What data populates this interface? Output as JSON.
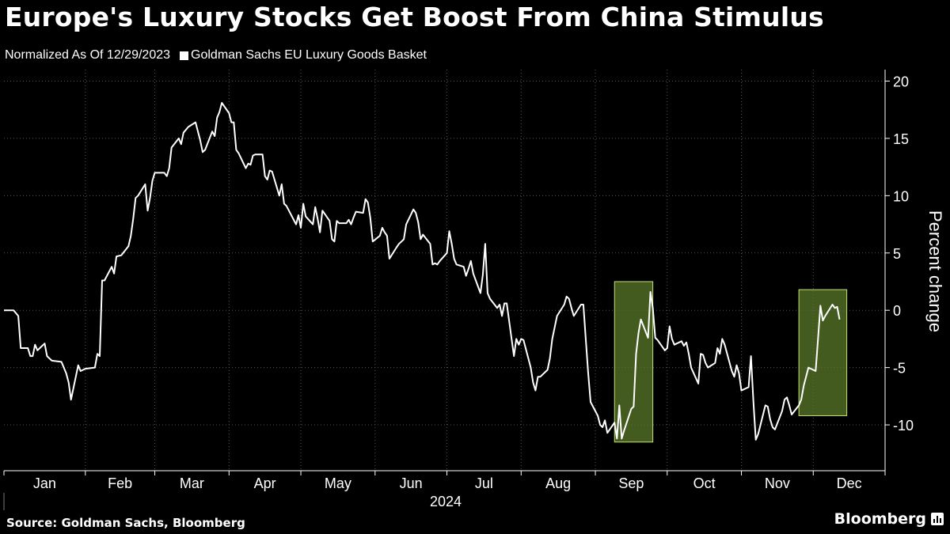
{
  "header": {
    "title": "Europe's Luxury Stocks Get Boost From China Stimulus",
    "normalized_note": "Normalized As Of 12/29/2023"
  },
  "footer": {
    "source": "Source: Goldman Sachs, Bloomberg",
    "logo_text": "Bloomberg"
  },
  "colors": {
    "background": "#000000",
    "line": "#ffffff",
    "highlight_fill": "#5a7a2a",
    "highlight_stroke": "#c5e07a",
    "grid": "#555555"
  },
  "chart_data": {
    "type": "line",
    "title": "Europe's Luxury Stocks Get Boost From China Stimulus",
    "subtitle": "Normalized As Of 12/29/2023",
    "ylabel": "Percent change",
    "xlabel": "",
    "year_label": "2024",
    "ylim": [
      -14,
      21
    ],
    "yticks": [
      -10,
      -5,
      0,
      5,
      10,
      15,
      20
    ],
    "ytick_labels": [
      "-10",
      "-5",
      "0",
      "5",
      "10",
      "15",
      "20"
    ],
    "x_months": [
      "Jan",
      "Feb",
      "Mar",
      "Apr",
      "May",
      "Jun",
      "Jul",
      "Aug",
      "Sep",
      "Oct",
      "Nov",
      "Dec"
    ],
    "grid": true,
    "legend": "top-left",
    "series": [
      {
        "name": "Goldman Sachs EU Luxury Goods Basket",
        "points": [
          [
            "2023-12-29",
            0
          ],
          [
            "2024-01-02",
            0
          ],
          [
            "2024-01-04",
            -0.5
          ],
          [
            "2024-01-05",
            -3.3
          ],
          [
            "2024-01-08",
            -3.3
          ],
          [
            "2024-01-09",
            -4
          ],
          [
            "2024-01-10",
            -4
          ],
          [
            "2024-01-11",
            -3
          ],
          [
            "2024-01-12",
            -3.5
          ],
          [
            "2024-01-15",
            -2.9
          ],
          [
            "2024-01-16",
            -4
          ],
          [
            "2024-01-18",
            -4.4
          ],
          [
            "2024-01-22",
            -4.5
          ],
          [
            "2024-01-24",
            -5.5
          ],
          [
            "2024-01-25",
            -6.3
          ],
          [
            "2024-01-26",
            -7.8
          ],
          [
            "2024-01-29",
            -4.8
          ],
          [
            "2024-01-30",
            -5.3
          ],
          [
            "2024-02-01",
            -5.1
          ],
          [
            "2024-02-05",
            -5
          ],
          [
            "2024-02-06",
            -3.8
          ],
          [
            "2024-02-07",
            -4
          ],
          [
            "2024-02-08",
            2.6
          ],
          [
            "2024-02-09",
            2.6
          ],
          [
            "2024-02-12",
            3.8
          ],
          [
            "2024-02-13",
            3.2
          ],
          [
            "2024-02-14",
            4.7
          ],
          [
            "2024-02-16",
            4.8
          ],
          [
            "2024-02-19",
            5.6
          ],
          [
            "2024-02-20",
            6.5
          ],
          [
            "2024-02-21",
            8
          ],
          [
            "2024-02-22",
            9.8
          ],
          [
            "2024-02-23",
            10
          ],
          [
            "2024-02-26",
            11
          ],
          [
            "2024-02-27",
            8.7
          ],
          [
            "2024-02-28",
            9.8
          ],
          [
            "2024-02-29",
            11.3
          ],
          [
            "2024-03-01",
            12
          ],
          [
            "2024-03-05",
            12
          ],
          [
            "2024-03-06",
            11.7
          ],
          [
            "2024-03-07",
            12.4
          ],
          [
            "2024-03-08",
            14.2
          ],
          [
            "2024-03-11",
            15
          ],
          [
            "2024-03-12",
            14.5
          ],
          [
            "2024-03-13",
            15.5
          ],
          [
            "2024-03-15",
            16
          ],
          [
            "2024-03-18",
            16.4
          ],
          [
            "2024-03-20",
            14.8
          ],
          [
            "2024-03-21",
            13.8
          ],
          [
            "2024-03-22",
            14
          ],
          [
            "2024-03-25",
            15.6
          ],
          [
            "2024-03-26",
            15.2
          ],
          [
            "2024-03-27",
            16.8
          ],
          [
            "2024-03-28",
            17.3
          ],
          [
            "2024-03-29",
            18.1
          ],
          [
            "2024-04-01",
            17.2
          ],
          [
            "2024-04-02",
            16.4
          ],
          [
            "2024-04-03",
            16.4
          ],
          [
            "2024-04-04",
            14
          ],
          [
            "2024-04-05",
            13.7
          ],
          [
            "2024-04-08",
            12.4
          ],
          [
            "2024-04-09",
            12.8
          ],
          [
            "2024-04-10",
            12.7
          ],
          [
            "2024-04-11",
            13.5
          ],
          [
            "2024-04-12",
            13.6
          ],
          [
            "2024-04-15",
            13.6
          ],
          [
            "2024-04-16",
            11.7
          ],
          [
            "2024-04-17",
            11.4
          ],
          [
            "2024-04-18",
            12.2
          ],
          [
            "2024-04-19",
            12.1
          ],
          [
            "2024-04-22",
            10
          ],
          [
            "2024-04-23",
            11
          ],
          [
            "2024-04-24",
            9.3
          ],
          [
            "2024-04-25",
            9.1
          ],
          [
            "2024-04-26",
            8.7
          ],
          [
            "2024-04-29",
            7.5
          ],
          [
            "2024-04-30",
            8.3
          ],
          [
            "2024-05-01",
            7.2
          ],
          [
            "2024-05-02",
            9.3
          ],
          [
            "2024-05-03",
            8.2
          ],
          [
            "2024-05-06",
            7.5
          ],
          [
            "2024-05-07",
            9
          ],
          [
            "2024-05-08",
            8
          ],
          [
            "2024-05-09",
            6.8
          ],
          [
            "2024-05-10",
            8.7
          ],
          [
            "2024-05-13",
            7.8
          ],
          [
            "2024-05-14",
            6.2
          ],
          [
            "2024-05-15",
            6
          ],
          [
            "2024-05-16",
            7.8
          ],
          [
            "2024-05-17",
            7.6
          ],
          [
            "2024-05-20",
            7.6
          ],
          [
            "2024-05-21",
            7.9
          ],
          [
            "2024-05-22",
            7.5
          ],
          [
            "2024-05-23",
            8.1
          ],
          [
            "2024-05-24",
            8.6
          ],
          [
            "2024-05-27",
            8.5
          ],
          [
            "2024-05-28",
            9.7
          ],
          [
            "2024-05-29",
            9.4
          ],
          [
            "2024-05-30",
            8.1
          ],
          [
            "2024-05-31",
            6
          ],
          [
            "2024-06-03",
            6.5
          ],
          [
            "2024-06-04",
            7.2
          ],
          [
            "2024-06-05",
            6.8
          ],
          [
            "2024-06-06",
            6.5
          ],
          [
            "2024-06-07",
            4.5
          ],
          [
            "2024-06-10",
            5.5
          ],
          [
            "2024-06-11",
            5.8
          ],
          [
            "2024-06-12",
            6
          ],
          [
            "2024-06-13",
            6.2
          ],
          [
            "2024-06-14",
            7.5
          ],
          [
            "2024-06-17",
            8.8
          ],
          [
            "2024-06-18",
            8.5
          ],
          [
            "2024-06-19",
            7.7
          ],
          [
            "2024-06-20",
            6.2
          ],
          [
            "2024-06-21",
            6.6
          ],
          [
            "2024-06-24",
            5.8
          ],
          [
            "2024-06-25",
            4
          ],
          [
            "2024-06-26",
            4.1
          ],
          [
            "2024-06-27",
            4
          ],
          [
            "2024-06-28",
            4.3
          ],
          [
            "2024-07-01",
            5
          ],
          [
            "2024-07-02",
            6.9
          ],
          [
            "2024-07-03",
            5.8
          ],
          [
            "2024-07-04",
            4.5
          ],
          [
            "2024-07-05",
            4
          ],
          [
            "2024-07-08",
            3.8
          ],
          [
            "2024-07-09",
            3
          ],
          [
            "2024-07-10",
            3.6
          ],
          [
            "2024-07-11",
            4.3
          ],
          [
            "2024-07-12",
            3.2
          ],
          [
            "2024-07-15",
            1.5
          ],
          [
            "2024-07-16",
            3.1
          ],
          [
            "2024-07-17",
            5.8
          ],
          [
            "2024-07-18",
            1.5
          ],
          [
            "2024-07-19",
            1
          ],
          [
            "2024-07-22",
            0.2
          ],
          [
            "2024-07-23",
            0.5
          ],
          [
            "2024-07-24",
            -0.5
          ],
          [
            "2024-07-25",
            0.6
          ],
          [
            "2024-07-26",
            0.6
          ],
          [
            "2024-07-29",
            -4
          ],
          [
            "2024-07-30",
            -2.5
          ],
          [
            "2024-07-31",
            -3
          ],
          [
            "2024-08-01",
            -2.5
          ],
          [
            "2024-08-02",
            -2.6
          ],
          [
            "2024-08-05",
            -5
          ],
          [
            "2024-08-06",
            -6.3
          ],
          [
            "2024-08-07",
            -7
          ],
          [
            "2024-08-08",
            -5.8
          ],
          [
            "2024-08-09",
            -5.8
          ],
          [
            "2024-08-12",
            -5.2
          ],
          [
            "2024-08-13",
            -4.2
          ],
          [
            "2024-08-14",
            -2.5
          ],
          [
            "2024-08-15",
            -1.5
          ],
          [
            "2024-08-16",
            -0.5
          ],
          [
            "2024-08-19",
            0.5
          ],
          [
            "2024-08-20",
            1.2
          ],
          [
            "2024-08-21",
            1
          ],
          [
            "2024-08-22",
            0.2
          ],
          [
            "2024-08-23",
            -0.5
          ],
          [
            "2024-08-26",
            0.5
          ],
          [
            "2024-08-27",
            0.5
          ],
          [
            "2024-08-28",
            -2.5
          ],
          [
            "2024-08-29",
            -5.5
          ],
          [
            "2024-08-30",
            -8
          ],
          [
            "2024-09-02",
            -9.2
          ],
          [
            "2024-09-03",
            -10
          ],
          [
            "2024-09-04",
            -10.2
          ],
          [
            "2024-09-05",
            -9.6
          ],
          [
            "2024-09-06",
            -10.7
          ],
          [
            "2024-09-09",
            -9.8
          ],
          [
            "2024-09-10",
            -11.2
          ],
          [
            "2024-09-11",
            -8.3
          ],
          [
            "2024-09-12",
            -11.2
          ],
          [
            "2024-09-13",
            -10.5
          ],
          [
            "2024-09-16",
            -8.6
          ],
          [
            "2024-09-17",
            -8.4
          ],
          [
            "2024-09-18",
            -3.8
          ],
          [
            "2024-09-19",
            -2
          ],
          [
            "2024-09-20",
            -0.8
          ],
          [
            "2024-09-23",
            -2.4
          ],
          [
            "2024-09-24",
            1.6
          ],
          [
            "2024-09-25",
            0.2
          ],
          [
            "2024-09-26",
            -2.4
          ],
          [
            "2024-09-27",
            -2.6
          ],
          [
            "2024-09-30",
            -3.5
          ],
          [
            "2024-10-01",
            -3.3
          ],
          [
            "2024-10-02",
            -1.4
          ],
          [
            "2024-10-03",
            -2.5
          ],
          [
            "2024-10-04",
            -3
          ],
          [
            "2024-10-07",
            -2.7
          ],
          [
            "2024-10-08",
            -3.1
          ],
          [
            "2024-10-09",
            -2.8
          ],
          [
            "2024-10-10",
            -3.8
          ],
          [
            "2024-10-11",
            -5
          ],
          [
            "2024-10-14",
            -6.4
          ],
          [
            "2024-10-15",
            -3.8
          ],
          [
            "2024-10-16",
            -3.9
          ],
          [
            "2024-10-17",
            -4.6
          ],
          [
            "2024-10-18",
            -5
          ],
          [
            "2024-10-21",
            -4.6
          ],
          [
            "2024-10-22",
            -3.3
          ],
          [
            "2024-10-23",
            -3.8
          ],
          [
            "2024-10-24",
            -2.5
          ],
          [
            "2024-10-25",
            -3
          ],
          [
            "2024-10-28",
            -5.3
          ],
          [
            "2024-10-29",
            -5.8
          ],
          [
            "2024-10-30",
            -4.8
          ],
          [
            "2024-10-31",
            -5.5
          ],
          [
            "2024-11-01",
            -7
          ],
          [
            "2024-11-04",
            -6.7
          ],
          [
            "2024-11-05",
            -4
          ],
          [
            "2024-11-06",
            -8
          ],
          [
            "2024-11-07",
            -11.3
          ],
          [
            "2024-11-08",
            -10.8
          ],
          [
            "2024-11-11",
            -8.3
          ],
          [
            "2024-11-12",
            -8.4
          ],
          [
            "2024-11-13",
            -9.5
          ],
          [
            "2024-11-14",
            -10.2
          ],
          [
            "2024-11-15",
            -10.4
          ],
          [
            "2024-11-18",
            -8.8
          ],
          [
            "2024-11-19",
            -7.8
          ],
          [
            "2024-11-20",
            -7.6
          ],
          [
            "2024-11-21",
            -8.3
          ],
          [
            "2024-11-22",
            -9.1
          ],
          [
            "2024-11-25",
            -8.3
          ],
          [
            "2024-11-26",
            -7.8
          ],
          [
            "2024-11-27",
            -6.6
          ],
          [
            "2024-11-28",
            -5.8
          ],
          [
            "2024-11-29",
            -5
          ],
          [
            "2024-12-02",
            -5.3
          ],
          [
            "2024-12-03",
            -2.5
          ],
          [
            "2024-12-04",
            0.4
          ],
          [
            "2024-12-05",
            -0.9
          ],
          [
            "2024-12-06",
            -0.5
          ],
          [
            "2024-12-09",
            0.5
          ],
          [
            "2024-12-10",
            0.2
          ],
          [
            "2024-12-11",
            0.3
          ],
          [
            "2024-12-12",
            -0.8
          ]
        ]
      }
    ],
    "highlights": [
      {
        "x_start": "2024-09-09",
        "x_end": "2024-09-25",
        "y_min": -11.5,
        "y_max": 2.5
      },
      {
        "x_start": "2024-11-25",
        "x_end": "2024-12-15",
        "y_min": -9.2,
        "y_max": 1.8
      }
    ]
  }
}
